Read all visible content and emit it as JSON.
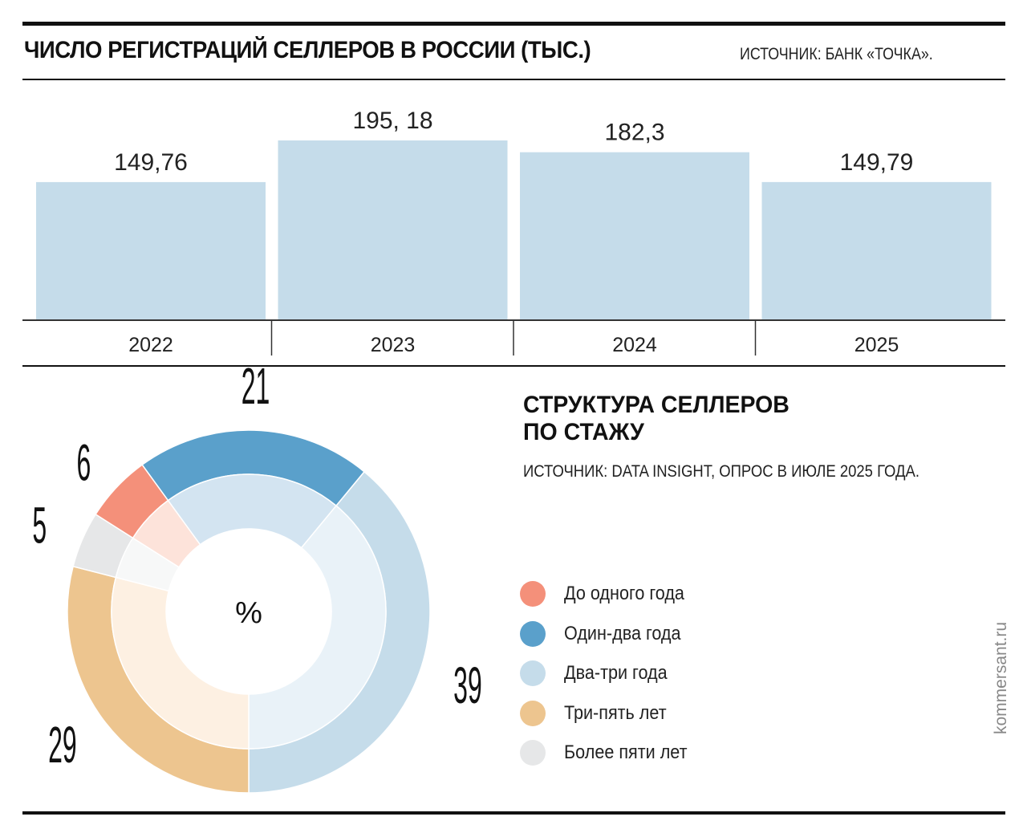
{
  "chart_data": [
    {
      "type": "bar",
      "title": "ЧИСЛО РЕГИСТРАЦИЙ СЕЛЛЕРОВ В РОССИИ (ТЫС.)",
      "source": "ИСТОЧНИК: БАНК «ТОЧКА».",
      "categories": [
        "2022",
        "2023",
        "2024",
        "2025"
      ],
      "values": [
        149.76,
        195.18,
        182.3,
        149.79
      ],
      "labels": [
        "149,76",
        "195, 18",
        "182,3",
        "149,79"
      ],
      "ylim": [
        0,
        200
      ],
      "color": "#c5dcea"
    },
    {
      "type": "pie",
      "title": "СТРУКТУРА СЕЛЛЕРОВ ПО СТАЖУ",
      "title_lines": [
        "СТРУКТУРА СЕЛЛЕРОВ",
        "ПО СТАЖУ"
      ],
      "source": "ИСТОЧНИК: DATA INSIGHT, ОПРОС В ИЮЛЕ 2025 ГОДА.",
      "center_label": "%",
      "slices": [
        {
          "name": "До одного года",
          "value": 6,
          "color": "#f4907a",
          "inner_color": "#fde3da"
        },
        {
          "name": "Один-два года",
          "value": 21,
          "color": "#5aa0cb",
          "inner_color": "#d3e4f1"
        },
        {
          "name": "Два-три года",
          "value": 39,
          "color": "#c5dcea",
          "inner_color": "#e9f2f8"
        },
        {
          "name": "Три-пять лет",
          "value": 29,
          "color": "#edc58f",
          "inner_color": "#fdf0e2"
        },
        {
          "name": "Более пяти лет",
          "value": 5,
          "color": "#e6e7e8",
          "inner_color": "#f7f8f8"
        }
      ]
    }
  ],
  "brand": "kommersant.ru"
}
